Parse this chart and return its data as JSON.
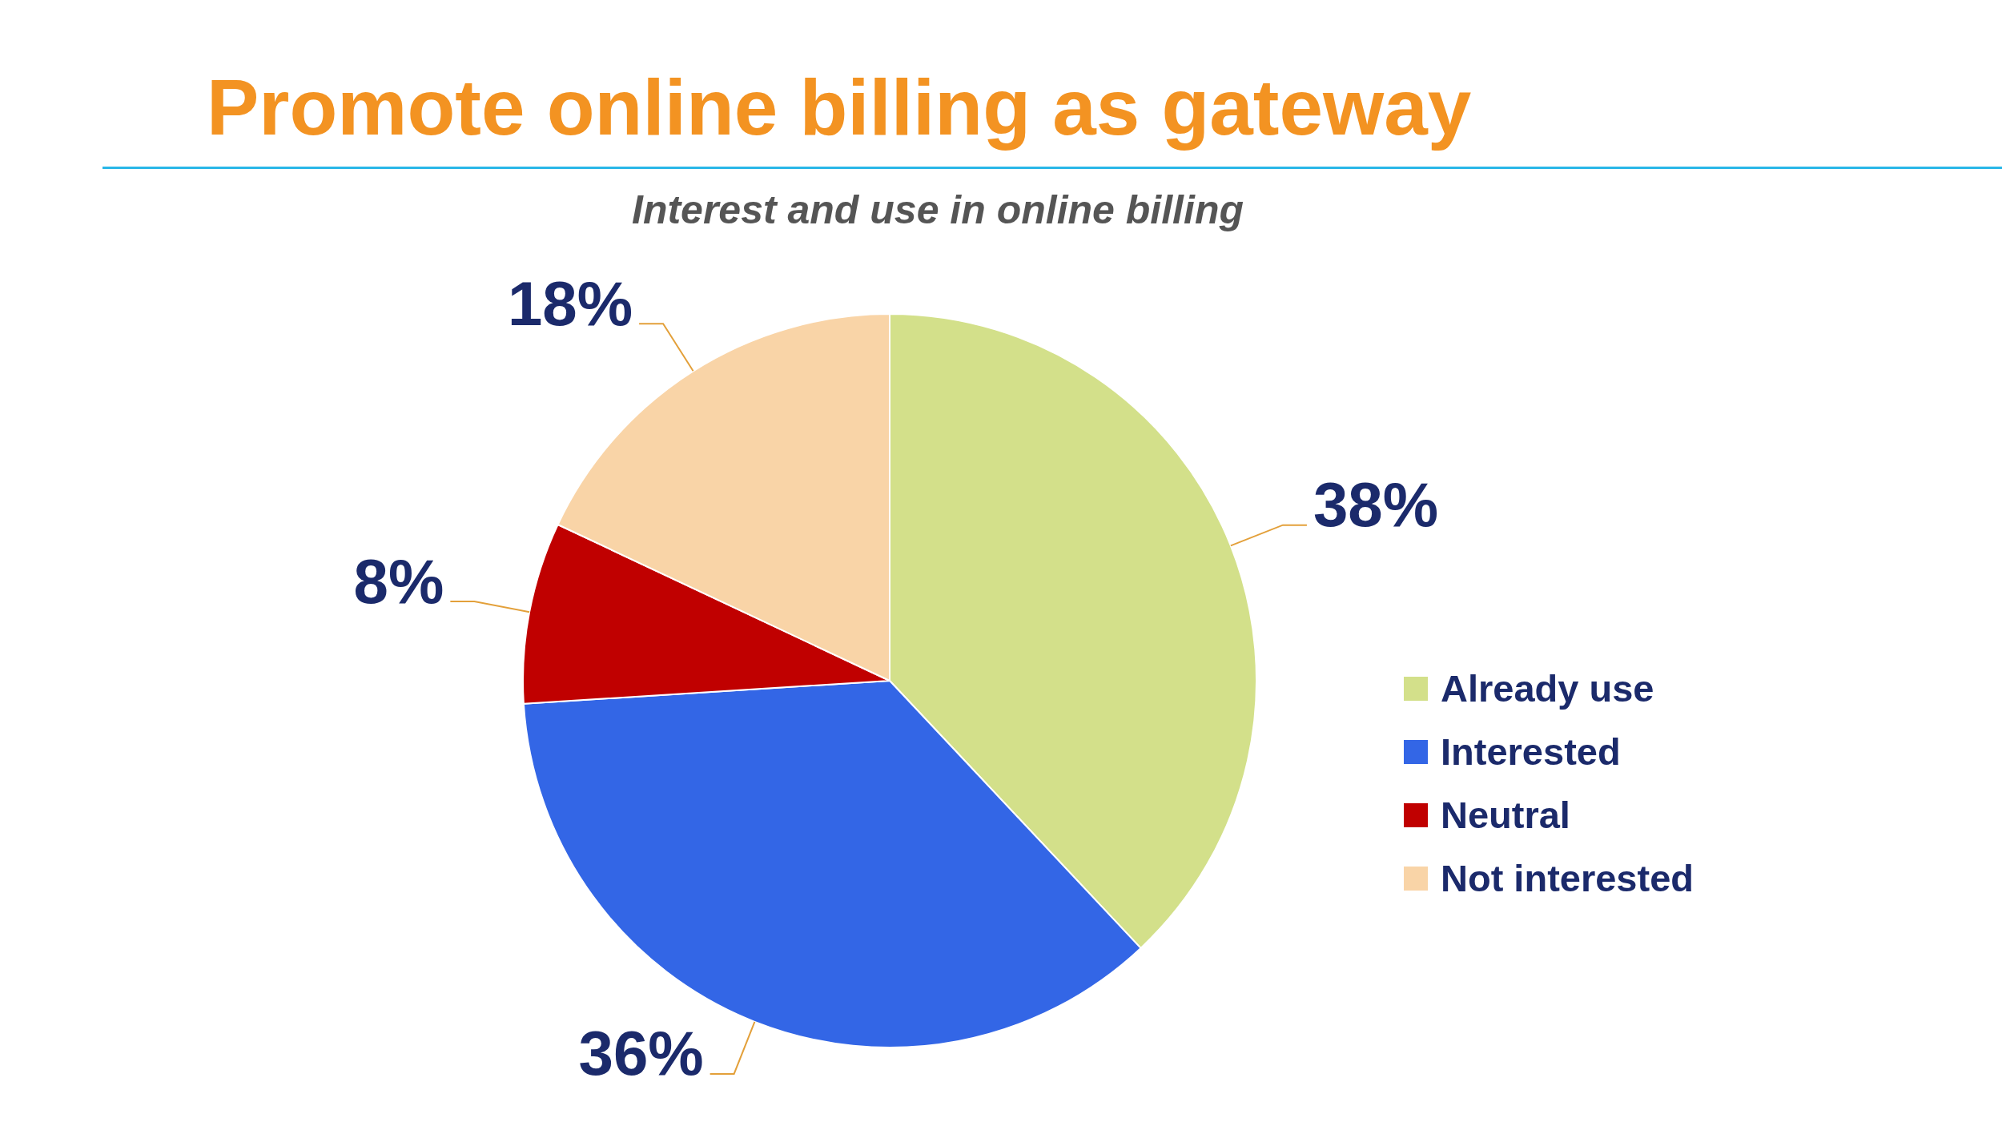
{
  "chart_data": {
    "type": "pie",
    "title": "Promote online billing as gateway",
    "subtitle": "Interest and use in online billing",
    "categories": [
      "Already use",
      "Interested",
      "Neutral",
      "Not interested"
    ],
    "values": [
      38,
      36,
      8,
      18
    ],
    "value_labels": [
      "38%",
      "36%",
      "8%",
      "18%"
    ],
    "colors": [
      "#d3e08a",
      "#3366e6",
      "#c00000",
      "#f9d4a7"
    ],
    "legend": "right"
  }
}
